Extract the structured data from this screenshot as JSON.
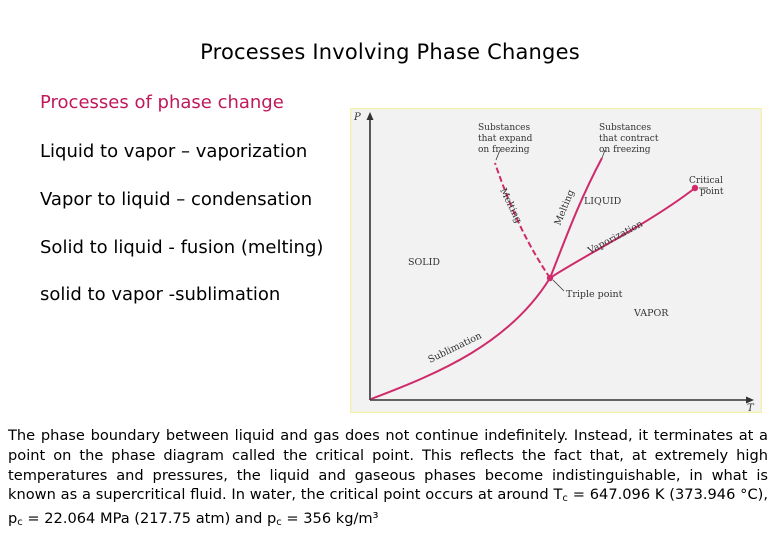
{
  "title": "Processes Involving Phase Changes",
  "colors": {
    "heading": "#c0185a",
    "curve": "#cf2a6a",
    "axis": "#333333",
    "plot_bg": "#f2f2f2",
    "border": "#f4f0a8"
  },
  "bullets": [
    "Processes of phase change",
    "Liquid to vapor – vaporization",
    "Vapor to liquid – condensation",
    "Solid to liquid - fusion (melting)",
    "solid to vapor -sublimation"
  ],
  "diagram": {
    "axis_y": "P",
    "axis_x": "T",
    "label_expand_1": "Substances",
    "label_expand_2": "that expand",
    "label_expand_3": "on freezing",
    "label_contract_1": "Substances",
    "label_contract_2": "that contract",
    "label_contract_3": "on freezing",
    "label_critical_1": "Critical",
    "label_critical_2": "point",
    "label_melting_a": "Melting",
    "label_melting_b": "Melting",
    "label_liquid": "LIQUID",
    "label_vaporization": "Vaporization",
    "label_solid": "SOLID",
    "label_triple": "Triple point",
    "label_vapor": "VAPOR",
    "label_sublimation": "Sublimation"
  },
  "paragraph": {
    "text1": "The phase boundary between liquid and gas does not continue indefinitely. Instead, it terminates at a point on the phase diagram called the critical point. This reflects the fact that, at extremely high temperatures and pressures, the liquid and gaseous phases become indistinguishable, in what is known as a supercritical fluid. In water, the critical point occurs at around T",
    "sub_tc": "c",
    "text2": " = 647.096 K (373.946 °C), p",
    "sub_pc": "c",
    "text3": " = 22.064 MPa (217.75 atm) and p",
    "sub_rc": "c",
    "text4": " = 356 kg/m³"
  }
}
